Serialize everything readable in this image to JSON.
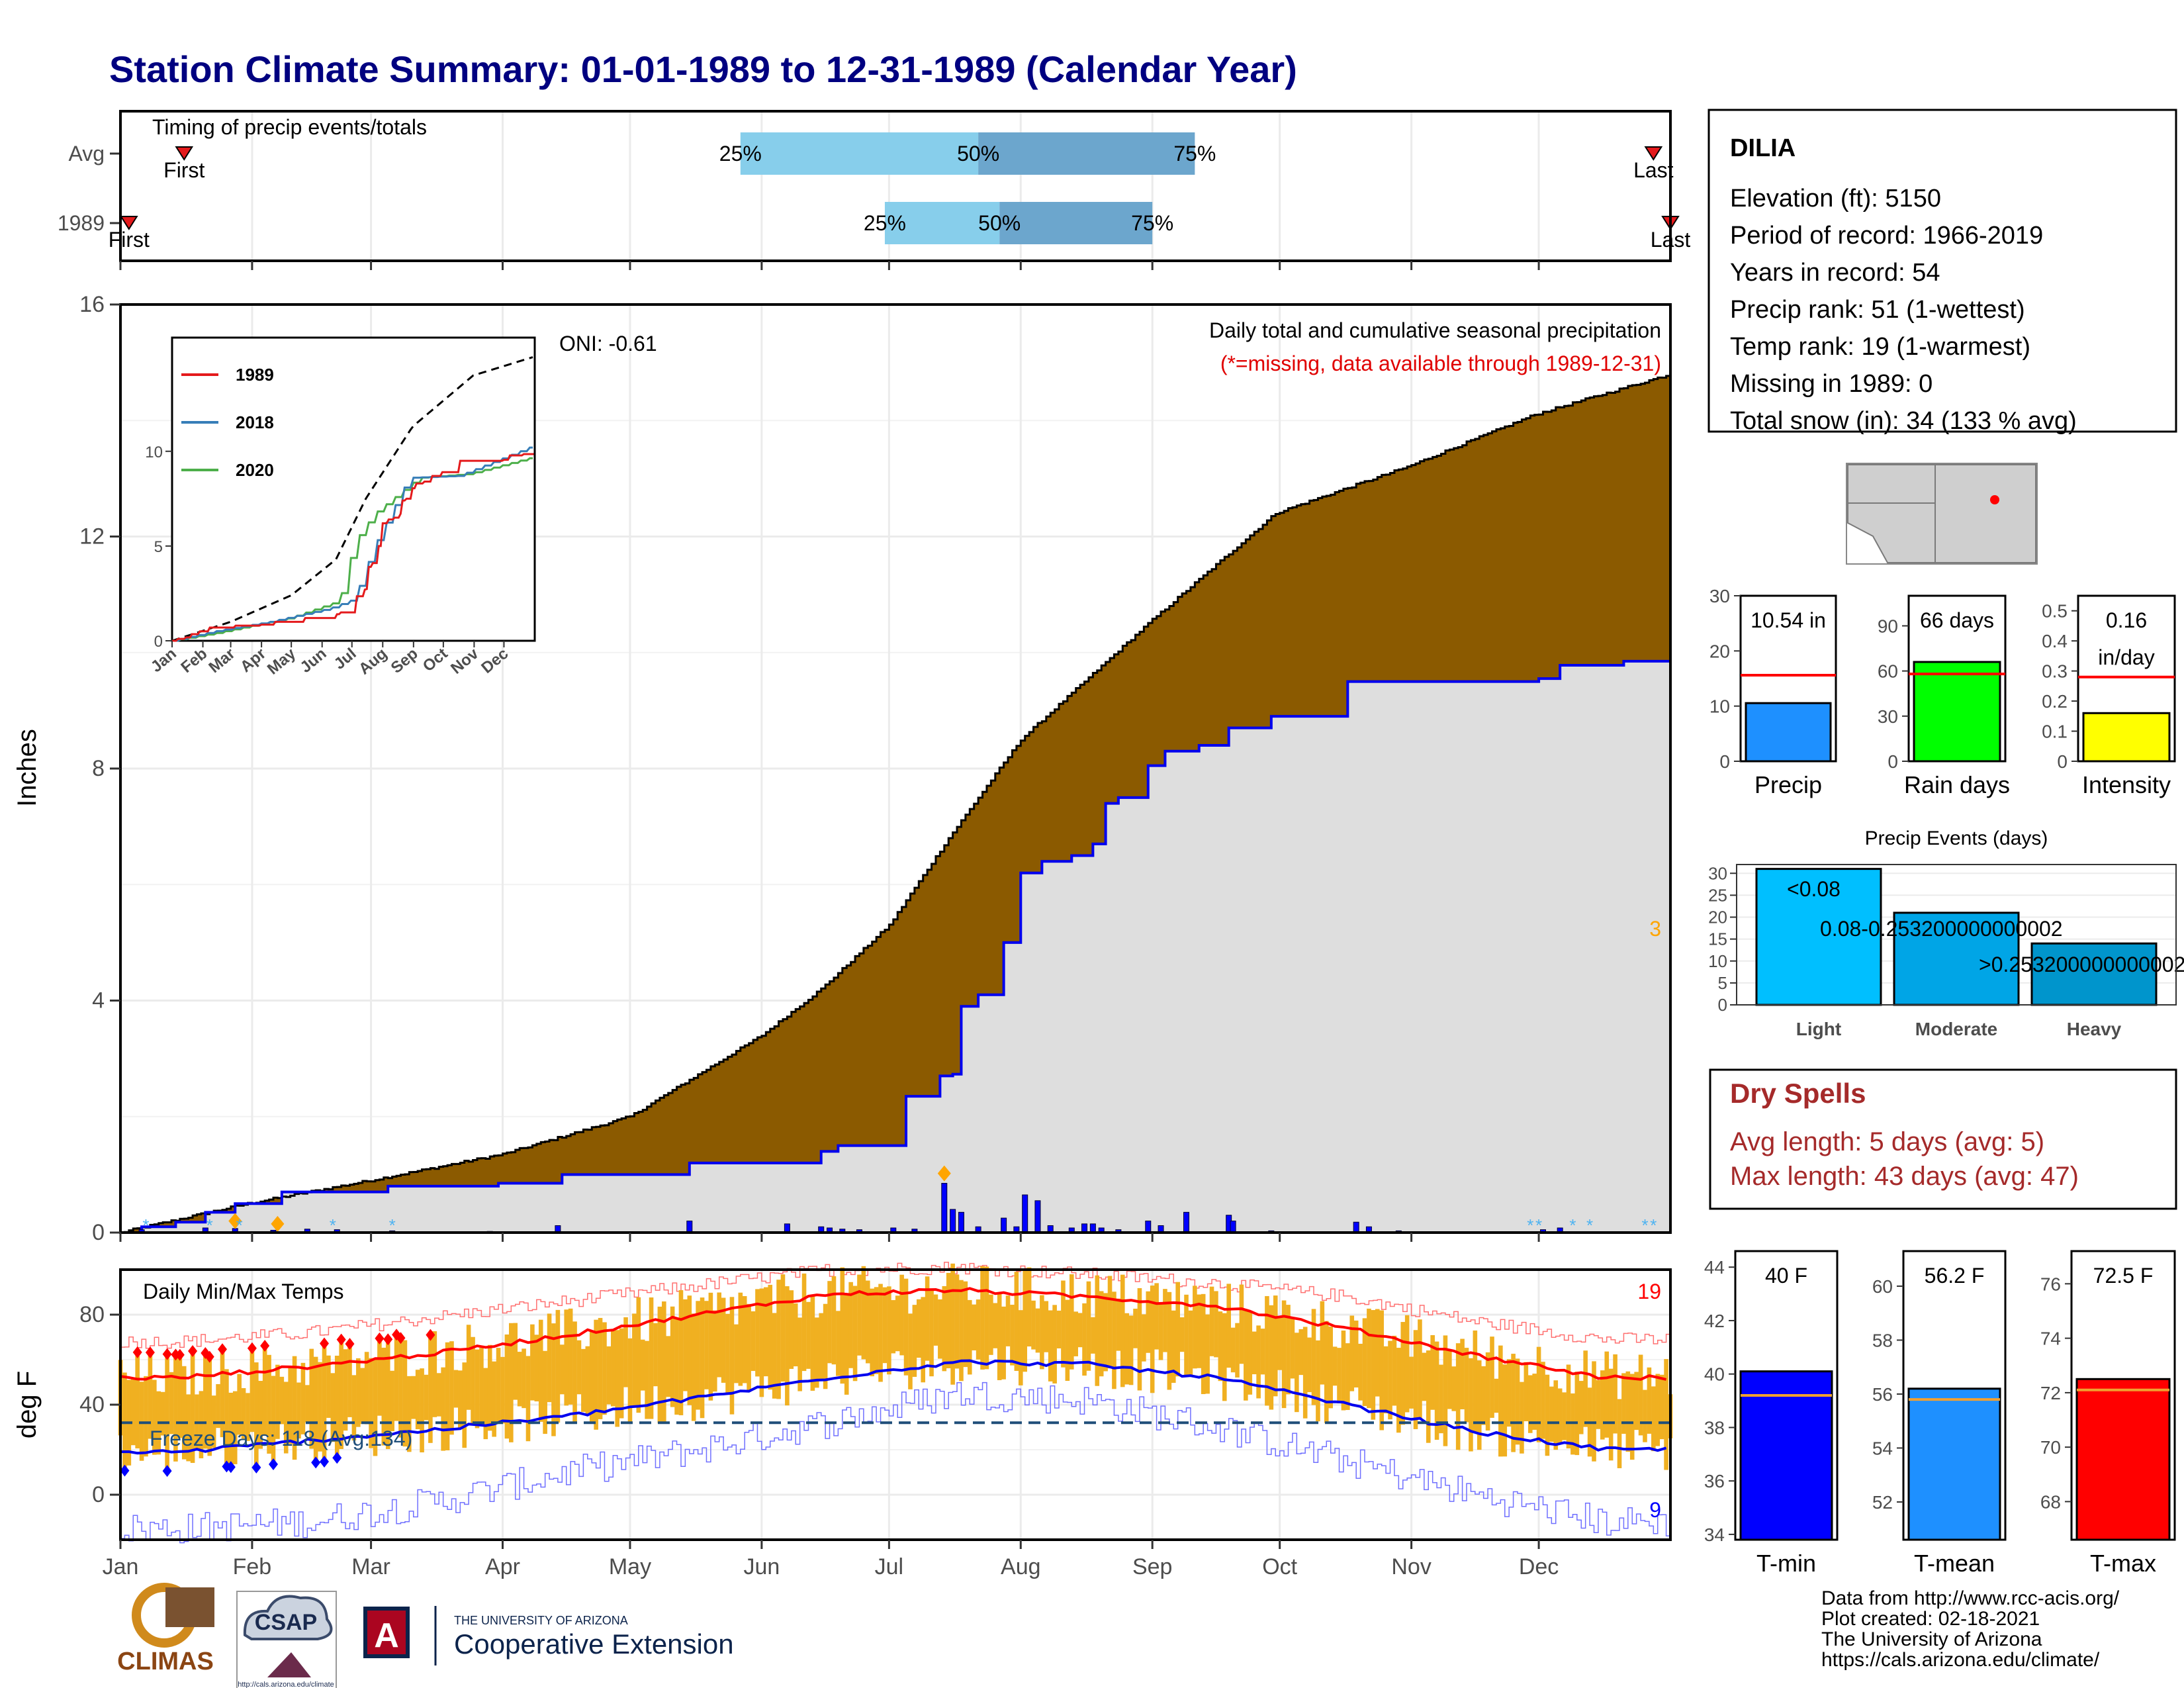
{
  "title": "Station Climate Summary: 01-01-1989 to 12-31-1989 (Calendar Year)",
  "timing": {
    "label": "Timing of precip events/totals",
    "rows": [
      {
        "label": "Avg",
        "first_doy": 16,
        "last_doy": 362,
        "p25": 147,
        "p50": 203,
        "p75": 254,
        "first_label": "First",
        "last_label": "Last"
      },
      {
        "label": "1989",
        "first_doy": 3,
        "last_doy": 366,
        "p25": 181,
        "p50": 208,
        "p75": 244,
        "first_label": "First",
        "last_label": "Last"
      }
    ],
    "pct_labels": [
      "25%",
      "50%",
      "75%"
    ]
  },
  "chart_data": [
    {
      "type": "area",
      "name": "precip_main",
      "title": "Daily total and cumulative seasonal precipitation",
      "subtitle": "(*=missing, data available through 1989-12-31)",
      "ylabel": "Inches",
      "ylim": [
        0,
        16
      ],
      "yticks": [
        0,
        4,
        8,
        12,
        16
      ],
      "oni_label": "ONI: -0.61",
      "corner_count": "3",
      "avg_cum_anchors": [
        [
          1,
          0
        ],
        [
          31,
          0.5
        ],
        [
          60,
          0.9
        ],
        [
          91,
          1.35
        ],
        [
          121,
          2.0
        ],
        [
          152,
          3.4
        ],
        [
          166,
          4.2
        ],
        [
          182,
          5.3
        ],
        [
          196,
          6.8
        ],
        [
          213,
          8.5
        ],
        [
          243,
          10.5
        ],
        [
          273,
          12.4
        ],
        [
          304,
          13.2
        ],
        [
          334,
          14.1
        ],
        [
          366,
          14.8
        ]
      ],
      "obs_cum_steps": [
        [
          1,
          0
        ],
        [
          6,
          0.1
        ],
        [
          14,
          0.18
        ],
        [
          21,
          0.35
        ],
        [
          28,
          0.5
        ],
        [
          39,
          0.7
        ],
        [
          64,
          0.8
        ],
        [
          90,
          0.85
        ],
        [
          105,
          1.0
        ],
        [
          135,
          1.2
        ],
        [
          166,
          1.4
        ],
        [
          170,
          1.5
        ],
        [
          182,
          1.5
        ],
        [
          186,
          2.35
        ],
        [
          194,
          2.7
        ],
        [
          197,
          2.73
        ],
        [
          199,
          3.9
        ],
        [
          203,
          4.1
        ],
        [
          209,
          5.0
        ],
        [
          213,
          6.2
        ],
        [
          218,
          6.4
        ],
        [
          225,
          6.5
        ],
        [
          230,
          6.7
        ],
        [
          233,
          7.4
        ],
        [
          236,
          7.5
        ],
        [
          243,
          8.05
        ],
        [
          247,
          8.3
        ],
        [
          255,
          8.4
        ],
        [
          262,
          8.7
        ],
        [
          272,
          8.9
        ],
        [
          290,
          9.5
        ],
        [
          335,
          9.55
        ],
        [
          340,
          9.78
        ],
        [
          355,
          9.85
        ],
        [
          366,
          10.54
        ]
      ],
      "daily_bars": [
        [
          6,
          0.05
        ],
        [
          21,
          0.08
        ],
        [
          28,
          0.07
        ],
        [
          37,
          0.04
        ],
        [
          45,
          0.06
        ],
        [
          52,
          0.05
        ],
        [
          65,
          0.03
        ],
        [
          88,
          0.02
        ],
        [
          104,
          0.12
        ],
        [
          135,
          0.2
        ],
        [
          158,
          0.15
        ],
        [
          166,
          0.1
        ],
        [
          168,
          0.08
        ],
        [
          171,
          0.06
        ],
        [
          175,
          0.05
        ],
        [
          183,
          0.08
        ],
        [
          188,
          0.06
        ],
        [
          195,
          0.85
        ],
        [
          197,
          0.4
        ],
        [
          199,
          0.35
        ],
        [
          203,
          0.1
        ],
        [
          209,
          0.25
        ],
        [
          212,
          0.1
        ],
        [
          214,
          0.65
        ],
        [
          217,
          0.55
        ],
        [
          220,
          0.12
        ],
        [
          225,
          0.08
        ],
        [
          228,
          0.15
        ],
        [
          230,
          0.15
        ],
        [
          232,
          0.08
        ],
        [
          236,
          0.05
        ],
        [
          243,
          0.2
        ],
        [
          246,
          0.12
        ],
        [
          252,
          0.35
        ],
        [
          262,
          0.3
        ],
        [
          263,
          0.2
        ],
        [
          272,
          0.03
        ],
        [
          292,
          0.18
        ],
        [
          295,
          0.1
        ],
        [
          302,
          0.03
        ],
        [
          336,
          0.05
        ],
        [
          340,
          0.08
        ]
      ],
      "snow_days": [
        7,
        22,
        29,
        51,
        65,
        333,
        335,
        343,
        347,
        360,
        362
      ],
      "inset": {
        "type": "line",
        "months": [
          "Jan",
          "Feb",
          "Mar",
          "Apr",
          "May",
          "Jun",
          "Jul",
          "Aug",
          "Sep",
          "Oct",
          "Nov",
          "Dec"
        ],
        "ylim": [
          0,
          16
        ],
        "yticks": [
          0,
          5,
          10
        ],
        "series": [
          {
            "name": "1989",
            "color": "#e41a1c"
          },
          {
            "name": "2018",
            "color": "#377eb8"
          },
          {
            "name": "2020",
            "color": "#4daf4a"
          }
        ],
        "avg_anchors": [
          [
            1,
            0
          ],
          [
            60,
            1.0
          ],
          [
            121,
            2.4
          ],
          [
            166,
            4.3
          ],
          [
            196,
            7.5
          ],
          [
            243,
            11.3
          ],
          [
            304,
            14.0
          ],
          [
            366,
            15.0
          ]
        ],
        "s2018_anchors": [
          [
            1,
            0
          ],
          [
            45,
            0.5
          ],
          [
            100,
            1.0
          ],
          [
            160,
            1.7
          ],
          [
            185,
            2.2
          ],
          [
            205,
            5.0
          ],
          [
            240,
            8.6
          ],
          [
            290,
            8.7
          ],
          [
            366,
            10.3
          ]
        ],
        "s2020_anchors": [
          [
            1,
            0
          ],
          [
            45,
            0.4
          ],
          [
            120,
            1.2
          ],
          [
            170,
            2.1
          ],
          [
            185,
            5.2
          ],
          [
            205,
            6.7
          ],
          [
            250,
            8.6
          ],
          [
            300,
            8.8
          ],
          [
            366,
            9.7
          ]
        ]
      }
    },
    {
      "type": "line",
      "name": "temps",
      "title": "Daily Min/Max Temps",
      "ylabel": "deg F",
      "ylim": [
        -20,
        100
      ],
      "yticks": [
        0,
        40,
        80
      ],
      "freeze_label": "Freeze Days: 118 (Avg:134)",
      "freeze_line": 32,
      "hot_count": "19",
      "cold_count": "9",
      "avg_max_by_month": [
        52,
        57,
        63,
        71,
        80,
        89,
        91,
        88,
        84,
        74,
        62,
        52
      ],
      "avg_min_by_month": [
        19,
        24,
        29,
        35,
        43,
        52,
        59,
        58,
        52,
        40,
        28,
        20
      ],
      "rec_max_by_month": [
        68,
        72,
        79,
        86,
        93,
        100,
        101,
        98,
        94,
        88,
        77,
        69
      ],
      "rec_min_by_month": [
        -15,
        -12,
        -3,
        10,
        20,
        32,
        45,
        42,
        30,
        15,
        0,
        -12
      ]
    }
  ],
  "x_months": [
    "Jan",
    "Feb",
    "Mar",
    "Apr",
    "May",
    "Jun",
    "Jul",
    "Aug",
    "Sep",
    "Oct",
    "Nov",
    "Dec"
  ],
  "info": {
    "station": "DILIA",
    "lines": [
      "Elevation (ft): 5150",
      "Period of record: 1966-2019",
      "Years in record: 54",
      "Precip rank: 51 (1-wettest)",
      "Temp rank: 19 (1-warmest)",
      "Missing in 1989: 0",
      "Total snow (in): 34 (133 % avg)"
    ]
  },
  "bars_top": [
    {
      "label": "Precip",
      "value": 10.54,
      "avg": 15.6,
      "value_text": "10.54 in",
      "ylim": [
        0,
        30
      ],
      "yticks": [
        0,
        10,
        20,
        30
      ],
      "color": "#1e90ff"
    },
    {
      "label": "Rain days",
      "value": 66,
      "avg": 58,
      "value_text": "66 days",
      "ylim": [
        0,
        110
      ],
      "yticks": [
        0,
        30,
        60,
        90
      ],
      "color": "#00ff00"
    },
    {
      "label": "Intensity",
      "value": 0.16,
      "avg": 0.28,
      "value_text": "0.16",
      "value_text2": "in/day",
      "ylim": [
        0,
        0.55
      ],
      "yticks": [
        0.0,
        0.1,
        0.2,
        0.3,
        0.4,
        0.5
      ],
      "color": "#ffff00"
    }
  ],
  "events": {
    "title": "Precip Events (days)",
    "categories": [
      "Light",
      "Moderate",
      "Heavy"
    ],
    "values": [
      31,
      21,
      14
    ],
    "labels": [
      "<0.08",
      "0.08-0.253200000000002",
      ">0.253200000000002"
    ],
    "colors": [
      "#00bfff",
      "#00a5e6",
      "#0095cc"
    ],
    "ylim": [
      0,
      32
    ],
    "yticks": [
      0,
      5,
      10,
      15,
      20,
      25,
      30
    ]
  },
  "dry": {
    "title": "Dry Spells",
    "avg": "Avg length: 5 days (avg: 5)",
    "max": "Max length: 43 days (avg: 47)"
  },
  "temp_bars": [
    {
      "label": "T-min",
      "value": 40.1,
      "avg": 39.2,
      "value_text": "40 F",
      "ylim": [
        33.8,
        44.6
      ],
      "yticks": [
        34,
        36,
        38,
        40,
        42,
        44
      ],
      "color": "#0000ff"
    },
    {
      "label": "T-mean",
      "value": 56.2,
      "avg": 55.8,
      "value_text": "56.2 F",
      "ylim": [
        50.6,
        61.3
      ],
      "yticks": [
        52,
        54,
        56,
        58,
        60
      ],
      "color": "#1e90ff"
    },
    {
      "label": "T-max",
      "value": 72.5,
      "avg": 72.1,
      "value_text": "72.5 F",
      "ylim": [
        66.6,
        77.2
      ],
      "yticks": [
        68,
        70,
        72,
        74,
        76
      ],
      "color": "#ff0000"
    }
  ],
  "footer": {
    "lines": [
      "Data from http://www.rcc-acis.org/",
      "Plot created: 02-18-2021",
      "The University of Arizona",
      "https://cals.arizona.edu/climate/"
    ],
    "logo_climas": "CLIMAS",
    "logo_csap": "CSAP",
    "csap_url": "http://cals.arizona.edu/climate",
    "ua_small": "THE UNIVERSITY OF ARIZONA",
    "ua_big": "Cooperative Extension",
    "ua_letter": "A"
  }
}
